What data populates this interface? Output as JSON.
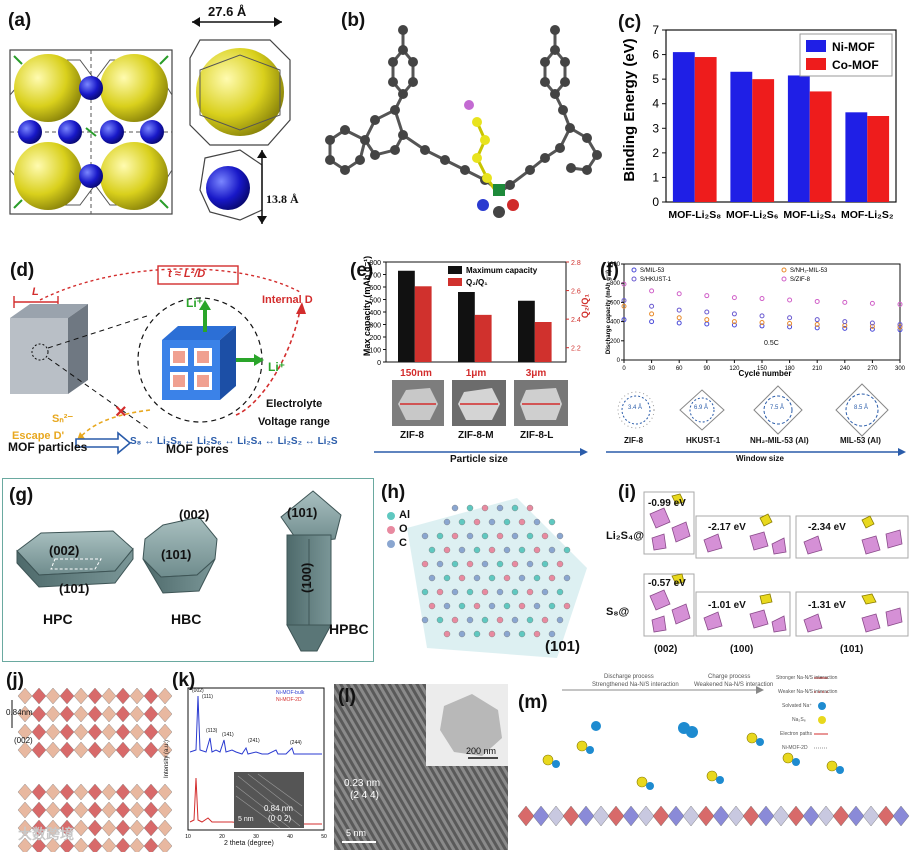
{
  "panels": {
    "a": {
      "label": "(a)",
      "dim_top": "27.6 Å",
      "dim_side": "13.8 Å"
    },
    "b": {
      "label": "(b)"
    },
    "c": {
      "label": "(c)"
    },
    "d": {
      "label": "(d)",
      "equation": "t ≈ L²/D",
      "L": "L",
      "internal_d": "Internal D",
      "li_top": "Li⁺",
      "li_right": "Li⁺",
      "electrolyte": "Electrolyte",
      "voltage": "Voltage range",
      "sn": "Sₙ²⁻",
      "escape": "Escape D'",
      "chain": "S₈ ↔ Li₂S₈ ↔ Li₂S₆ ↔ Li₂S₄ ↔ Li₂S₂ ↔ Li₂S",
      "mof_particles": "MOF particles",
      "mof_pores": "MOF pores"
    },
    "e": {
      "label": "(e)",
      "samples": [
        "ZIF-8",
        "ZIF-8-M",
        "ZIF-8-L"
      ],
      "sizes": [
        "150nm",
        "1μm",
        "3μm"
      ],
      "axis_caption": "Particle size"
    },
    "f": {
      "label": "(f)",
      "structures": [
        "ZIF-8",
        "HKUST-1",
        "NH₂-MIL-53 (Al)",
        "MIL-53 (Al)"
      ],
      "windows": [
        "3.4 Å",
        "6.9 Å",
        "7.5 Å",
        "8.5 Å"
      ],
      "axis_caption": "Window size",
      "rate": "0.5C"
    },
    "g": {
      "label": "(g)",
      "facet_002": "(002)",
      "facet_101": "(101)",
      "facet_101_b": "(101)",
      "facet_002_b": "(002)",
      "facet_101_c": "(101)",
      "facet_100_c": "(100)",
      "names": [
        "HPC",
        "HBC",
        "HPBC"
      ]
    },
    "h": {
      "label": "(h)",
      "legend": [
        "Al",
        "O",
        "C"
      ],
      "facet": "(101)"
    },
    "i": {
      "label": "(i)",
      "row1": "Li₂S₄@",
      "row2": "S₈@",
      "energies_row1": [
        "-0.99 eV",
        "-2.17 eV",
        "-2.34 eV"
      ],
      "energies_row2": [
        "-0.57 eV",
        "-1.01 eV",
        "-1.31 eV"
      ],
      "facets": [
        "(002)",
        "(100)",
        "(101)"
      ]
    },
    "j": {
      "label": "(j)",
      "spacing": "0.84nm",
      "facet": "(002)"
    },
    "k": {
      "label": "(k)",
      "ylabel": "Intensity (a.u.)",
      "xlabel": "2 theta (degree)",
      "legend": [
        "Ni-MOF-bulk",
        "Ni-MOF-2D"
      ],
      "peaks": [
        "(002)",
        "(111)",
        "(113)",
        "(141)",
        "(241)",
        "(244)"
      ],
      "inset_spacing": "0.84 nm",
      "inset_facet": "(0 0 2)",
      "inset_scale": "5 nm"
    },
    "l": {
      "label": "(l)",
      "spacing": "0.23 nm",
      "facet": "(2 4 4)",
      "scale_main": "5 nm",
      "scale_inset": "200 nm"
    },
    "m": {
      "label": "(m)",
      "discharge": "Discharge process",
      "discharge_sub": "Strengthened Na-N/S interaction",
      "charge": "Charge process",
      "charge_sub": "Weakened Na-N/S interaction",
      "legend": [
        "Stronger Na-N/S interaction",
        "Weaker Na-N/S interaction",
        "Solvated Na⁺",
        "Na₂S₈",
        "Electron paths",
        "Ni-MOF-2D"
      ]
    }
  },
  "watermark": "大数跨境",
  "colors": {
    "ni_mof": "#1f1fe6",
    "co_mof": "#ee1c1c",
    "max_cap": "#111111",
    "q2q1": "#d0312d",
    "accent_blue": "#2a5caa",
    "yellow": "#d8d21a"
  },
  "chart_data": [
    {
      "type": "bar",
      "panel": "c",
      "categories": [
        "MOF-Li₂S₈",
        "MOF-Li₂S₆",
        "MOF-Li₂S₄",
        "MOF-Li₂S₂"
      ],
      "series": [
        {
          "name": "Ni-MOF",
          "values": [
            6.1,
            5.3,
            5.15,
            3.65
          ]
        },
        {
          "name": "Co-MOF",
          "values": [
            5.9,
            5.0,
            4.5,
            3.5
          ]
        }
      ],
      "ylabel": "Binding Energy (eV)",
      "ylim": [
        0,
        7
      ],
      "yticks": [
        0,
        1,
        2,
        3,
        4,
        5,
        6,
        7
      ],
      "legend": "top-right"
    },
    {
      "type": "bar",
      "panel": "e",
      "categories": [
        "150nm",
        "1μm",
        "3μm"
      ],
      "series": [
        {
          "name": "Maximum capacity",
          "values": [
            730,
            560,
            490
          ]
        },
        {
          "name": "Q₂/Q₁",
          "values": [
            2.63,
            2.43,
            2.38
          ]
        }
      ],
      "ylabel": "Max capacity (mAh g⁻¹)",
      "y2label": "Q₂/Q₁",
      "ylim": [
        0,
        800
      ],
      "yticks": [
        0,
        100,
        200,
        300,
        400,
        500,
        600,
        700,
        800
      ],
      "y2lim": [
        2.1,
        2.8
      ],
      "y2ticks": [
        2.2,
        2.4,
        2.6,
        2.8
      ],
      "legend": "top-right"
    },
    {
      "type": "scatter",
      "panel": "f",
      "x": [
        0,
        30,
        60,
        90,
        120,
        150,
        180,
        210,
        240,
        270,
        300
      ],
      "series": [
        {
          "name": "S/MIL-53",
          "values": [
            420,
            400,
            385,
            375,
            365,
            355,
            345,
            335,
            330,
            320,
            315
          ]
        },
        {
          "name": "S/NH₂-MIL-53",
          "values": [
            560,
            480,
            440,
            420,
            400,
            390,
            380,
            370,
            360,
            350,
            345
          ]
        },
        {
          "name": "S/HKUST-1",
          "values": [
            620,
            560,
            520,
            500,
            480,
            460,
            440,
            420,
            400,
            385,
            370
          ]
        },
        {
          "name": "S/ZIF-8",
          "values": [
            790,
            720,
            690,
            670,
            650,
            640,
            625,
            610,
            600,
            590,
            580
          ]
        }
      ],
      "xlabel": "Cycle number",
      "ylabel": "Discharge capacity (mAh g⁻¹)",
      "xlim": [
        0,
        300
      ],
      "ylim": [
        0,
        1000
      ],
      "xticks": [
        0,
        30,
        60,
        90,
        120,
        150,
        180,
        210,
        240,
        270,
        300
      ],
      "yticks": [
        0,
        200,
        400,
        600,
        800,
        1000
      ],
      "legend": "top"
    }
  ]
}
